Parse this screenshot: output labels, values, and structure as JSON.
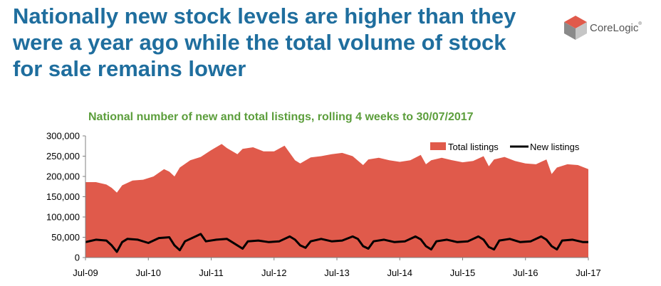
{
  "header": {
    "title": "Nationally new stock levels are higher than they were a year ago while the total volume of stock for sale remains lower"
  },
  "brand": {
    "name": "CoreLogic",
    "mark": "®"
  },
  "colors": {
    "title": "#1f6e9e",
    "chart_title": "#5c9e3c",
    "area": "#e05a4b",
    "line": "#000000"
  },
  "chart_data": {
    "type": "area",
    "title": "National number of new and total listings, rolling 4 weeks to 30/07/2017",
    "legend": [
      "Total listings",
      "New listings"
    ],
    "legend_position": "top-right",
    "y_ticks": [
      "0",
      "50,000",
      "100,000",
      "150,000",
      "200,000",
      "250,000",
      "300,000"
    ],
    "ylim": [
      0,
      300000
    ],
    "x_ticks": [
      "Jul-09",
      "Jul-10",
      "Jul-11",
      "Jul-12",
      "Jul-13",
      "Jul-14",
      "Jul-15",
      "Jul-16",
      "Jul-17"
    ],
    "x_range": [
      "Jul-09",
      "Jul-17"
    ],
    "grid": false,
    "series": [
      {
        "name": "Total listings",
        "type": "area",
        "points": [
          [
            "2009-07",
            186000
          ],
          [
            "2009-09",
            186000
          ],
          [
            "2009-11",
            180000
          ],
          [
            "2009-12",
            172000
          ],
          [
            "2010-01",
            160000
          ],
          [
            "2010-02",
            178000
          ],
          [
            "2010-04",
            190000
          ],
          [
            "2010-06",
            192000
          ],
          [
            "2010-08",
            200000
          ],
          [
            "2010-10",
            218000
          ],
          [
            "2010-11",
            212000
          ],
          [
            "2010-12",
            200000
          ],
          [
            "2011-01",
            222000
          ],
          [
            "2011-03",
            240000
          ],
          [
            "2011-05",
            248000
          ],
          [
            "2011-07",
            265000
          ],
          [
            "2011-09",
            280000
          ],
          [
            "2011-10",
            270000
          ],
          [
            "2011-12",
            255000
          ],
          [
            "2012-01",
            268000
          ],
          [
            "2012-03",
            272000
          ],
          [
            "2012-05",
            262000
          ],
          [
            "2012-07",
            262000
          ],
          [
            "2012-09",
            276000
          ],
          [
            "2012-11",
            240000
          ],
          [
            "2012-12",
            232000
          ],
          [
            "2013-02",
            247000
          ],
          [
            "2013-04",
            250000
          ],
          [
            "2013-06",
            255000
          ],
          [
            "2013-08",
            258000
          ],
          [
            "2013-10",
            250000
          ],
          [
            "2013-12",
            228000
          ],
          [
            "2014-01",
            242000
          ],
          [
            "2014-03",
            246000
          ],
          [
            "2014-05",
            240000
          ],
          [
            "2014-07",
            236000
          ],
          [
            "2014-09",
            240000
          ],
          [
            "2014-11",
            253000
          ],
          [
            "2014-12",
            230000
          ],
          [
            "2015-01",
            240000
          ],
          [
            "2015-03",
            246000
          ],
          [
            "2015-05",
            240000
          ],
          [
            "2015-07",
            235000
          ],
          [
            "2015-09",
            238000
          ],
          [
            "2015-11",
            250000
          ],
          [
            "2015-12",
            225000
          ],
          [
            "2016-01",
            242000
          ],
          [
            "2016-03",
            248000
          ],
          [
            "2016-05",
            238000
          ],
          [
            "2016-07",
            232000
          ],
          [
            "2016-09",
            230000
          ],
          [
            "2016-11",
            242000
          ],
          [
            "2016-12",
            206000
          ],
          [
            "2017-01",
            222000
          ],
          [
            "2017-03",
            230000
          ],
          [
            "2017-05",
            228000
          ],
          [
            "2017-07",
            218000
          ]
        ]
      },
      {
        "name": "New listings",
        "type": "line",
        "points": [
          [
            "2009-07",
            38000
          ],
          [
            "2009-09",
            44000
          ],
          [
            "2009-11",
            42000
          ],
          [
            "2009-12",
            30000
          ],
          [
            "2010-01",
            14000
          ],
          [
            "2010-02",
            38000
          ],
          [
            "2010-03",
            46000
          ],
          [
            "2010-05",
            44000
          ],
          [
            "2010-07",
            36000
          ],
          [
            "2010-09",
            48000
          ],
          [
            "2010-11",
            50000
          ],
          [
            "2010-12",
            30000
          ],
          [
            "2011-01",
            18000
          ],
          [
            "2011-02",
            40000
          ],
          [
            "2011-04",
            52000
          ],
          [
            "2011-05",
            58000
          ],
          [
            "2011-06",
            40000
          ],
          [
            "2011-08",
            44000
          ],
          [
            "2011-10",
            46000
          ],
          [
            "2011-11",
            38000
          ],
          [
            "2012-01",
            22000
          ],
          [
            "2012-02",
            40000
          ],
          [
            "2012-04",
            42000
          ],
          [
            "2012-06",
            38000
          ],
          [
            "2012-08",
            40000
          ],
          [
            "2012-10",
            52000
          ],
          [
            "2012-11",
            44000
          ],
          [
            "2012-12",
            30000
          ],
          [
            "2013-01",
            24000
          ],
          [
            "2013-02",
            40000
          ],
          [
            "2013-04",
            46000
          ],
          [
            "2013-06",
            40000
          ],
          [
            "2013-08",
            42000
          ],
          [
            "2013-10",
            52000
          ],
          [
            "2013-11",
            46000
          ],
          [
            "2013-12",
            28000
          ],
          [
            "2014-01",
            22000
          ],
          [
            "2014-02",
            40000
          ],
          [
            "2014-04",
            44000
          ],
          [
            "2014-06",
            38000
          ],
          [
            "2014-08",
            40000
          ],
          [
            "2014-10",
            52000
          ],
          [
            "2014-11",
            45000
          ],
          [
            "2014-12",
            28000
          ],
          [
            "2015-01",
            20000
          ],
          [
            "2015-02",
            40000
          ],
          [
            "2015-04",
            44000
          ],
          [
            "2015-06",
            38000
          ],
          [
            "2015-08",
            40000
          ],
          [
            "2015-10",
            52000
          ],
          [
            "2015-11",
            44000
          ],
          [
            "2015-12",
            26000
          ],
          [
            "2016-01",
            20000
          ],
          [
            "2016-02",
            42000
          ],
          [
            "2016-04",
            46000
          ],
          [
            "2016-06",
            38000
          ],
          [
            "2016-08",
            40000
          ],
          [
            "2016-10",
            52000
          ],
          [
            "2016-11",
            44000
          ],
          [
            "2016-12",
            28000
          ],
          [
            "2017-01",
            20000
          ],
          [
            "2017-02",
            42000
          ],
          [
            "2017-04",
            44000
          ],
          [
            "2017-06",
            38000
          ],
          [
            "2017-07",
            38000
          ]
        ]
      }
    ]
  }
}
